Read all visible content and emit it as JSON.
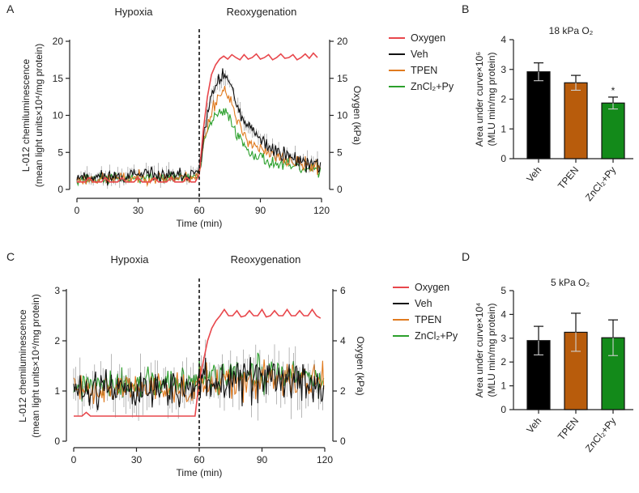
{
  "chart_data": [
    {
      "panel": "A",
      "type": "line",
      "phase_labels": [
        "Hypoxia",
        "Reoxygenation"
      ],
      "xlabel": "Time (min)",
      "ylabel_line1": "L-012 chemiluminescence",
      "ylabel_line2": "(mean light units×10⁴/mg protein)",
      "y2label": "Oxygen (kPa)",
      "xlim": [
        0,
        120
      ],
      "ylim": [
        0,
        20
      ],
      "y2lim": [
        0,
        20
      ],
      "xticks": [
        "0",
        "30",
        "60",
        "90",
        "120"
      ],
      "xtick_values": [
        0,
        30,
        60,
        90,
        120
      ],
      "yticks": [
        "0",
        "5",
        "10",
        "15",
        "20"
      ],
      "ytick_values": [
        0,
        5,
        10,
        15,
        20
      ],
      "y2ticks": [
        "0",
        "5",
        "10",
        "15",
        "20"
      ],
      "y2tick_values": [
        0,
        5,
        10,
        15,
        20
      ],
      "vline_x": 60,
      "legend": [
        {
          "label": "Oxygen",
          "color": "#e8474c"
        },
        {
          "label": "Veh",
          "color": "#111111"
        },
        {
          "label": "TPEN",
          "color": "#e07a1f"
        },
        {
          "label": "ZnCl₂+Py",
          "color": "#2ca02c"
        }
      ],
      "series": [
        {
          "name": "Oxygen",
          "axis": "right",
          "color": "#e8474c",
          "x": [
            0,
            2,
            4,
            6,
            8,
            10,
            12,
            14,
            16,
            18,
            20,
            22,
            24,
            26,
            28,
            30,
            32,
            34,
            36,
            38,
            40,
            42,
            44,
            46,
            48,
            50,
            52,
            54,
            56,
            58,
            60,
            62,
            64,
            66,
            68,
            70,
            72,
            74,
            76,
            78,
            80,
            82,
            84,
            86,
            88,
            90,
            92,
            94,
            96,
            98,
            100,
            102,
            104,
            106,
            108,
            110,
            112,
            114,
            116,
            118
          ],
          "values": [
            1,
            1,
            1,
            1.6,
            1,
            1,
            1,
            1.6,
            1,
            1,
            1,
            1.6,
            1,
            1,
            1,
            1.6,
            1,
            1,
            1,
            1.6,
            1,
            1,
            1,
            1.6,
            1,
            1,
            1,
            1.6,
            1,
            1,
            2,
            8,
            12.5,
            15.5,
            16.8,
            17.6,
            18,
            17.6,
            18.2,
            17.8,
            17.5,
            18.2,
            17.6,
            17.8,
            18.3,
            17.6,
            17.8,
            18.2,
            17.5,
            17.8,
            18.3,
            17.7,
            17.8,
            18.2,
            17.5,
            17.8,
            18.3,
            17.7,
            18.4,
            17.8
          ]
        },
        {
          "name": "Veh",
          "axis": "left",
          "color": "#111111",
          "x": [
            0,
            10,
            20,
            30,
            40,
            50,
            58,
            60,
            62,
            64,
            66,
            68,
            70,
            72,
            74,
            76,
            78,
            80,
            84,
            88,
            92,
            96,
            100,
            104,
            108,
            112,
            116,
            119
          ],
          "values": [
            1.8,
            1.7,
            1.8,
            1.9,
            1.9,
            1.8,
            2.0,
            2.6,
            7,
            10,
            12.5,
            14,
            14.6,
            15,
            15.3,
            13.5,
            11.5,
            10,
            8.5,
            7.2,
            6.2,
            5.5,
            5.0,
            4.5,
            4.0,
            3.7,
            3.4,
            3.1
          ],
          "noise": 0.45,
          "seed": 11
        },
        {
          "name": "TPEN",
          "axis": "left",
          "color": "#e07a1f",
          "x": [
            0,
            10,
            20,
            30,
            40,
            50,
            58,
            60,
            62,
            64,
            66,
            68,
            70,
            72,
            74,
            76,
            78,
            80,
            84,
            88,
            92,
            96,
            100,
            104,
            108,
            112,
            116,
            119
          ],
          "values": [
            1.3,
            1.4,
            1.5,
            1.6,
            1.6,
            1.5,
            1.7,
            2.2,
            6,
            8.5,
            10.5,
            12,
            12.8,
            13.3,
            13.3,
            11.5,
            9.5,
            8.2,
            6.8,
            5.8,
            5.0,
            4.5,
            4.2,
            3.9,
            3.6,
            3.3,
            3.1,
            2.9
          ],
          "noise": 0.4,
          "seed": 23
        },
        {
          "name": "ZnCl₂+Py",
          "axis": "left",
          "color": "#2ca02c",
          "x": [
            0,
            10,
            20,
            30,
            40,
            50,
            58,
            60,
            62,
            64,
            66,
            68,
            70,
            72,
            74,
            76,
            78,
            80,
            84,
            88,
            92,
            96,
            100,
            104,
            108,
            112,
            116,
            119
          ],
          "values": [
            1.4,
            1.4,
            1.5,
            1.5,
            1.6,
            1.6,
            1.7,
            2.0,
            5.5,
            7.8,
            9.2,
            9.9,
            10.2,
            10.3,
            10.2,
            9.2,
            7.8,
            6.8,
            5.4,
            4.6,
            4.0,
            3.6,
            3.3,
            3.1,
            2.9,
            2.7,
            2.6,
            2.5
          ],
          "noise": 0.35,
          "seed": 37
        }
      ]
    },
    {
      "panel": "B",
      "type": "bar",
      "title": "18 kPa O₂",
      "ylabel_line1": "Area under curve×10⁶",
      "ylabel_line2": "(MLU min/mg protein)",
      "ylim": [
        0,
        4
      ],
      "yticks": [
        "0",
        "1",
        "2",
        "3",
        "4"
      ],
      "ytick_values": [
        0,
        1,
        2,
        3,
        4
      ],
      "categories": [
        "Veh",
        "TPEN",
        "ZnCl₂+Py"
      ],
      "values": [
        2.92,
        2.55,
        1.87
      ],
      "errors": [
        0.3,
        0.25,
        0.2
      ],
      "colors": [
        "#000000",
        "#b85c0c",
        "#138a1a"
      ],
      "significance": [
        "",
        "",
        "*"
      ]
    },
    {
      "panel": "C",
      "type": "line",
      "phase_labels": [
        "Hypoxia",
        "Reoxygenation"
      ],
      "xlabel": "Time (min)",
      "ylabel_line1": "L-012 chemiluminescence",
      "ylabel_line2": "(mean light units×10⁴/mg protein)",
      "y2label": "Oxygen (kPa)",
      "xlim": [
        0,
        120
      ],
      "ylim": [
        0,
        3
      ],
      "y2lim": [
        0,
        6
      ],
      "xticks": [
        "0",
        "30",
        "60",
        "90",
        "120"
      ],
      "xtick_values": [
        0,
        30,
        60,
        90,
        120
      ],
      "yticks": [
        "0",
        "1",
        "2",
        "3"
      ],
      "ytick_values": [
        0,
        1,
        2,
        3
      ],
      "y2ticks": [
        "0",
        "2",
        "4",
        "6"
      ],
      "y2tick_values": [
        0,
        2,
        4,
        6
      ],
      "vline_x": 60,
      "legend": [
        {
          "label": "Oxygen",
          "color": "#e8474c"
        },
        {
          "label": "Veh",
          "color": "#111111"
        },
        {
          "label": "TPEN",
          "color": "#e07a1f"
        },
        {
          "label": "ZnCl₂+Py",
          "color": "#2ca02c"
        }
      ],
      "series": [
        {
          "name": "Oxygen",
          "axis": "right",
          "color": "#e8474c",
          "x": [
            0,
            2,
            4,
            6,
            8,
            10,
            12,
            14,
            16,
            18,
            20,
            22,
            24,
            26,
            28,
            30,
            32,
            34,
            36,
            38,
            40,
            42,
            44,
            46,
            48,
            50,
            52,
            54,
            56,
            58,
            60,
            62,
            64,
            66,
            68,
            70,
            72,
            74,
            76,
            78,
            80,
            82,
            84,
            86,
            88,
            90,
            92,
            94,
            96,
            98,
            100,
            102,
            104,
            106,
            108,
            110,
            112,
            114,
            116,
            118
          ],
          "values": [
            1,
            1,
            1,
            1.15,
            1,
            1,
            1,
            1,
            1,
            1,
            1,
            1,
            1,
            1,
            1,
            1,
            1,
            1,
            1,
            1,
            1,
            1,
            1,
            1,
            1,
            1,
            1,
            1,
            1,
            1,
            2.4,
            3.2,
            4.0,
            4.5,
            4.8,
            5.0,
            5.25,
            5.0,
            5.0,
            5.2,
            4.95,
            5.0,
            5.2,
            5.0,
            5.0,
            5.25,
            4.95,
            5.0,
            5.2,
            5.0,
            5.0,
            5.25,
            5.0,
            5.0,
            5.2,
            5.0,
            5.0,
            5.25,
            5.0,
            4.9
          ]
        },
        {
          "name": "Veh",
          "axis": "left",
          "color": "#111111",
          "x": [
            0,
            20,
            40,
            58,
            60,
            80,
            100,
            119
          ],
          "values": [
            1.0,
            1.05,
            1.05,
            1.05,
            1.15,
            1.2,
            1.2,
            1.15
          ],
          "noise": 0.18,
          "seed": 51
        },
        {
          "name": "TPEN",
          "axis": "left",
          "color": "#e07a1f",
          "x": [
            0,
            20,
            40,
            58,
            60,
            80,
            100,
            119
          ],
          "values": [
            1.05,
            1.05,
            1.1,
            1.1,
            1.2,
            1.25,
            1.25,
            1.2
          ],
          "noise": 0.15,
          "seed": 63
        },
        {
          "name": "ZnCl₂+Py",
          "axis": "left",
          "color": "#2ca02c",
          "x": [
            0,
            20,
            40,
            58,
            60,
            80,
            100,
            119
          ],
          "values": [
            1.1,
            1.1,
            1.15,
            1.15,
            1.25,
            1.3,
            1.3,
            1.25
          ],
          "noise": 0.15,
          "seed": 77
        }
      ]
    },
    {
      "panel": "D",
      "type": "bar",
      "title": "5 kPa O₂",
      "ylabel_line1": "Area under curve×10⁴",
      "ylabel_line2": "(MLU min/mg protein)",
      "ylim": [
        0,
        5
      ],
      "yticks": [
        "0",
        "1",
        "2",
        "3",
        "4",
        "5"
      ],
      "ytick_values": [
        0,
        1,
        2,
        3,
        4,
        5
      ],
      "categories": [
        "Veh",
        "TPEN",
        "ZnCl₂+Py"
      ],
      "values": [
        2.9,
        3.25,
        3.02
      ],
      "errors": [
        0.6,
        0.8,
        0.75
      ],
      "colors": [
        "#000000",
        "#b85c0c",
        "#138a1a"
      ],
      "significance": [
        "",
        "",
        ""
      ]
    }
  ]
}
